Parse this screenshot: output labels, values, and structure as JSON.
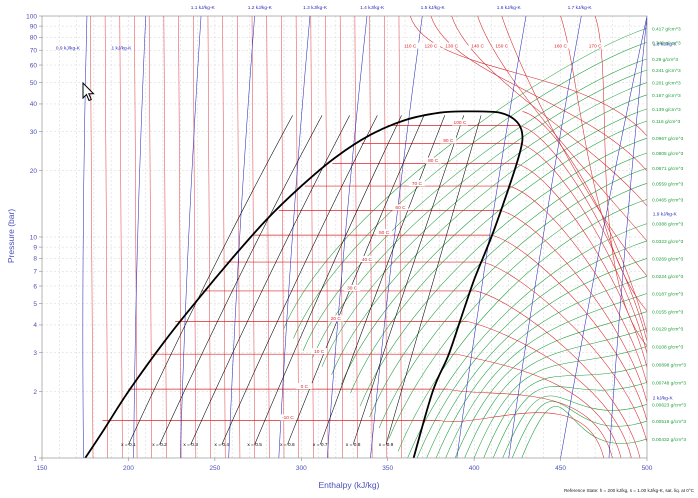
{
  "chart_data": {
    "type": "line",
    "xlabel": "Enthalpy (kJ/kg)",
    "ylabel": "Pressure (bar)",
    "xlim": [
      150,
      500
    ],
    "ylim": [
      1,
      100
    ],
    "yscale": "log",
    "grid": true,
    "x_ticks": [
      "150",
      "200",
      "250",
      "300",
      "350",
      "400",
      "450",
      "500"
    ],
    "y_ticks": [
      {
        "v": 1,
        "label": "1"
      },
      {
        "v": 2,
        "label": "2"
      },
      {
        "v": 3,
        "label": "3"
      },
      {
        "v": 4,
        "label": "4"
      },
      {
        "v": 5,
        "label": "5"
      },
      {
        "v": 6,
        "label": "6"
      },
      {
        "v": 7,
        "label": "7"
      },
      {
        "v": 8,
        "label": "8"
      },
      {
        "v": 9,
        "label": "9"
      },
      {
        "v": 10,
        "label": "10"
      },
      {
        "v": 20,
        "label": "20"
      },
      {
        "v": 30,
        "label": "30"
      },
      {
        "v": 40,
        "label": "40"
      },
      {
        "v": 50,
        "label": "50"
      },
      {
        "v": 60,
        "label": "60"
      },
      {
        "v": 70,
        "label": "70"
      },
      {
        "v": 80,
        "label": "80"
      },
      {
        "v": 90,
        "label": "90"
      },
      {
        "v": 100,
        "label": "100"
      }
    ],
    "reference_note": "Reference State: h = 200 kJ/kg, s = 1.00 kJ/kg-K, sat. liq. at 0°C",
    "saturation_dome": {
      "liquid": [
        [
          175,
          1
        ],
        [
          186,
          1.35
        ],
        [
          200,
          2.0
        ],
        [
          220,
          3.3
        ],
        [
          240,
          5.2
        ],
        [
          260,
          8.0
        ],
        [
          280,
          12
        ],
        [
          300,
          17
        ],
        [
          320,
          23
        ],
        [
          340,
          29
        ],
        [
          360,
          33.8
        ],
        [
          380,
          36.5
        ],
        [
          395,
          37
        ]
      ],
      "vapor": [
        [
          395,
          37
        ],
        [
          415,
          36.5
        ],
        [
          425,
          33
        ],
        [
          428,
          28
        ],
        [
          425,
          22
        ],
        [
          418,
          15
        ],
        [
          410,
          10
        ],
        [
          400,
          6.4
        ],
        [
          392,
          4.2
        ],
        [
          385,
          2.9
        ],
        [
          376,
          2.0
        ],
        [
          365,
          1.0
        ]
      ]
    },
    "quality_lines": [
      {
        "label": "x = 0.1",
        "p1": [
          200,
          1.15
        ],
        "p2": [
          295,
          35.5
        ]
      },
      {
        "label": "x = 0.2",
        "p1": [
          218,
          1.15
        ],
        "p2": [
          312,
          35.5
        ]
      },
      {
        "label": "x = 0.3",
        "p1": [
          236,
          1.15
        ],
        "p2": [
          328,
          35.5
        ]
      },
      {
        "label": "x = 0.4",
        "p1": [
          254,
          1.15
        ],
        "p2": [
          344,
          35.5
        ]
      },
      {
        "label": "x = 0.5",
        "p1": [
          273,
          1.15
        ],
        "p2": [
          358,
          35.5
        ]
      },
      {
        "label": "x = 0.6",
        "p1": [
          292,
          1.15
        ],
        "p2": [
          371,
          35.5
        ]
      },
      {
        "label": "x = 0.7",
        "p1": [
          311,
          1.15
        ],
        "p2": [
          383,
          35.5
        ]
      },
      {
        "label": "x = 0.8",
        "p1": [
          330,
          1.15
        ],
        "p2": [
          394,
          35.5
        ]
      },
      {
        "label": "x = 0.9",
        "p1": [
          349,
          1.15
        ],
        "p2": [
          404,
          35.5
        ]
      }
    ],
    "isotherms_inside": [
      {
        "label": "-10 C",
        "p": 1.48,
        "h1": 185,
        "h2": 380
      },
      {
        "label": "0 C",
        "p": 2.05,
        "h1": 200,
        "h2": 385
      },
      {
        "label": "10 C",
        "p": 2.95,
        "h1": 213,
        "h2": 390
      },
      {
        "label": "20 C",
        "p": 4.15,
        "h1": 227,
        "h2": 396
      },
      {
        "label": "30 C",
        "p": 5.7,
        "h1": 242,
        "h2": 401
      },
      {
        "label": "40 C",
        "p": 7.7,
        "h1": 256,
        "h2": 405
      },
      {
        "label": "50 C",
        "p": 10.2,
        "h1": 272,
        "h2": 410
      },
      {
        "label": "60 C",
        "p": 13.2,
        "h1": 287,
        "h2": 415
      },
      {
        "label": "70 C",
        "p": 17.0,
        "h1": 302,
        "h2": 420
      },
      {
        "label": "80 C",
        "p": 21.5,
        "h1": 318,
        "h2": 424
      },
      {
        "label": "90 C",
        "p": 26.5,
        "h1": 335,
        "h2": 426
      },
      {
        "label": "100 C",
        "p": 32.0,
        "h1": 350,
        "h2": 426
      }
    ],
    "isotherms_top": [
      {
        "label": "110 C",
        "h": 363
      },
      {
        "label": "120 C",
        "h": 375
      },
      {
        "label": "130 C",
        "h": 387
      },
      {
        "label": "140 C",
        "h": 402
      },
      {
        "label": "150 C",
        "h": 416
      },
      {
        "label": "160 C",
        "h": 450
      },
      {
        "label": "170 C",
        "h": 470
      }
    ],
    "isentropes": [
      {
        "label": "0.9 kJ/kg-K",
        "h_bottom": 174,
        "h_top": 176,
        "label_h": 165,
        "label_p": 72
      },
      {
        "label": "1 kJ/kg-K",
        "h_bottom": 203,
        "h_top": 210,
        "label_h": 196,
        "label_p": 72
      },
      {
        "label": "1.1 kJ/kg-K",
        "h_bottom": 230,
        "h_top": 242,
        "label_h": 243,
        "label_p": 100
      },
      {
        "label": "1.2 kJ/kg-K",
        "h_bottom": 258,
        "h_top": 273,
        "label_h": 276,
        "label_p": 100
      },
      {
        "label": "1.3 kJ/kg-K",
        "h_bottom": 287,
        "h_top": 305,
        "label_h": 308,
        "label_p": 100
      },
      {
        "label": "1.4 kJ/kg-K",
        "h_bottom": 315,
        "h_top": 338,
        "label_h": 341,
        "label_p": 100
      },
      {
        "label": "1.5 kJ/kg-K",
        "h_bottom": 340,
        "h_top": 370,
        "label_h": 376,
        "label_p": 100
      },
      {
        "label": "1.6 kJ/kg-K",
        "h_bottom": 390,
        "h_top": 430,
        "label_h": 420,
        "label_p": 100
      },
      {
        "label": "1.7 kJ/kg-K",
        "h_bottom": 420,
        "h_top": 462,
        "label_h": 461,
        "label_p": 100
      },
      {
        "label": "1.8 kJ/kg-K",
        "h_bottom": 450,
        "h_top": 500,
        "label_h": 501,
        "label_p": 75
      },
      {
        "label": "1.9 kJ/kg-K",
        "h_bottom": 478,
        "h_top": 500,
        "label_h": 501,
        "label_p": 12.8
      },
      {
        "label": "2 kJ/kg-K",
        "h_bottom": 505,
        "h_top": 500,
        "label_h": 501,
        "label_p": 1.88
      }
    ],
    "isochores": [
      {
        "label": "0.417 g/cm^3",
        "p": 88
      },
      {
        "label": "0.348 g/cm^3",
        "p": 76
      },
      {
        "label": "0.29 g/cm^3",
        "p": 64
      },
      {
        "label": "0.241 g/cm^3",
        "p": 57
      },
      {
        "label": "0.201 g/cm^3",
        "p": 50
      },
      {
        "label": "0.167 g/cm^3",
        "p": 44
      },
      {
        "label": "0.139 g/cm^3",
        "p": 38
      },
      {
        "label": "0.116 g/cm^3",
        "p": 33.5
      },
      {
        "label": "0.0967 g/cm^3",
        "p": 28
      },
      {
        "label": "0.0805 g/cm^3",
        "p": 24
      },
      {
        "label": "0.0671 g/cm^3",
        "p": 20.5
      },
      {
        "label": "0.0559 g/cm^3",
        "p": 17.5
      },
      {
        "label": "0.0465 g/cm^3",
        "p": 14.8
      },
      {
        "label": "0.0388 g/cm^3",
        "p": 11.5
      },
      {
        "label": "0.0323 g/cm^3",
        "p": 9.6
      },
      {
        "label": "0.0269 g/cm^3",
        "p": 8.0
      },
      {
        "label": "0.0224 g/cm^3",
        "p": 6.65
      },
      {
        "label": "0.0187 g/cm^3",
        "p": 5.55
      },
      {
        "label": "0.0155 g/cm^3",
        "p": 4.6
      },
      {
        "label": "0.0129 g/cm^3",
        "p": 3.85
      },
      {
        "label": "0.0108 g/cm^3",
        "p": 3.2
      },
      {
        "label": "0.00898 g/cm^3",
        "p": 2.65
      },
      {
        "label": "0.00748 g/cm^3",
        "p": 2.2
      },
      {
        "label": "0.00623 g/cm^3",
        "p": 1.75
      },
      {
        "label": "0.00519 g/cm^3",
        "p": 1.47
      },
      {
        "label": "0.00432 g/cm^3",
        "p": 1.22
      }
    ],
    "colors": {
      "dome": "#000000",
      "quality": "#000000",
      "isotherm": "#d9262b",
      "isentrope": "#2b2bbd",
      "isochore": "#1e9e3a",
      "grid": "#c9c9c9",
      "axis_text": "#4b4fb8",
      "label_text": "#333333"
    }
  }
}
